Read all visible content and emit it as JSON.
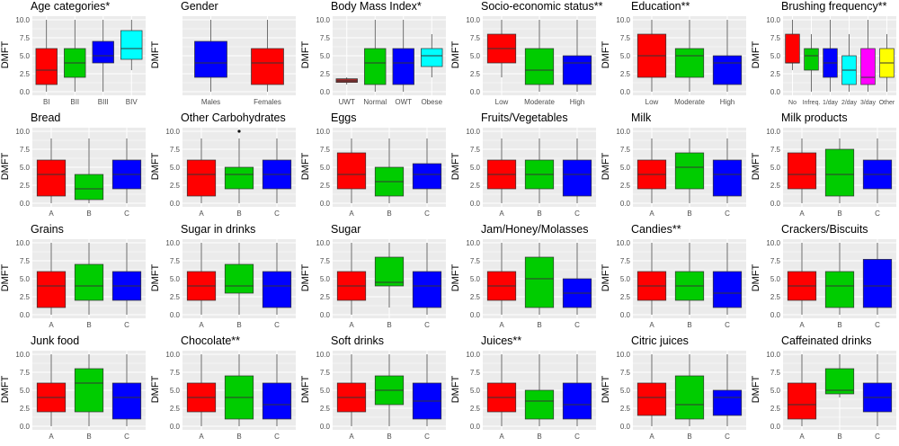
{
  "colors": {
    "panel_bg": "#ebebeb",
    "grid": "#ffffff",
    "red": "#ff0000",
    "green": "#00cc00",
    "blue": "#0000ff",
    "cyan": "#00ffff",
    "magenta": "#ff00ff",
    "yellow": "#ffff00",
    "darkred": "#a52a2a"
  },
  "y_axis_label": "DMFT",
  "chart_data": [
    {
      "type": "box",
      "title": "Age categories*",
      "categories": [
        "BI",
        "BII",
        "BIII",
        "BIV"
      ],
      "ylim": [
        0,
        10
      ],
      "yticks": [
        "0.0",
        "2.5",
        "5.0",
        "7.5",
        "10.0"
      ],
      "boxes": [
        {
          "min": 0,
          "q1": 1,
          "median": 3,
          "q3": 6,
          "max": 10,
          "color": "#ff0000"
        },
        {
          "min": 0,
          "q1": 2,
          "median": 4,
          "q3": 6,
          "max": 10,
          "color": "#00cc00"
        },
        {
          "min": 0,
          "q1": 4,
          "median": 5,
          "q3": 7,
          "max": 10,
          "color": "#0000ff"
        },
        {
          "min": 3,
          "q1": 4.5,
          "median": 6,
          "q3": 8.5,
          "max": 10,
          "color": "#00ffff"
        }
      ]
    },
    {
      "type": "box",
      "title": "Gender",
      "categories": [
        "Males",
        "Females"
      ],
      "ylim": [
        0,
        10
      ],
      "yticks": [
        "",
        "",
        "",
        "",
        ""
      ],
      "boxes": [
        {
          "min": 0,
          "q1": 2,
          "median": 4,
          "q3": 7,
          "max": 10,
          "color": "#0000ff"
        },
        {
          "min": 0,
          "q1": 1,
          "median": 4,
          "q3": 6,
          "max": 10,
          "color": "#ff0000"
        }
      ]
    },
    {
      "type": "box",
      "title": "Body Mass Index*",
      "categories": [
        "UWT",
        "Normal",
        "OWT",
        "Obese"
      ],
      "ylim": [
        0,
        10
      ],
      "yticks": [
        "0.0",
        "2.5",
        "5.0",
        "7.5",
        "10.0"
      ],
      "boxes": [
        {
          "min": 1,
          "q1": 1.3,
          "median": 1.5,
          "q3": 1.8,
          "max": 2,
          "color": "#a52a2a"
        },
        {
          "min": 0,
          "q1": 1,
          "median": 4,
          "q3": 6,
          "max": 10,
          "color": "#00cc00"
        },
        {
          "min": 0,
          "q1": 1,
          "median": 4,
          "q3": 6,
          "max": 10,
          "color": "#0000ff"
        },
        {
          "min": 2,
          "q1": 3.5,
          "median": 5,
          "q3": 6,
          "max": 8,
          "color": "#00ffff"
        }
      ]
    },
    {
      "type": "box",
      "title": "Socio-economic status**",
      "categories": [
        "Low",
        "Moderate",
        "High"
      ],
      "ylim": [
        0,
        10
      ],
      "yticks": [
        "0.0",
        "2.5",
        "5.0",
        "7.5",
        "10.0"
      ],
      "boxes": [
        {
          "min": 2,
          "q1": 4,
          "median": 6,
          "q3": 8,
          "max": 10,
          "color": "#ff0000"
        },
        {
          "min": 0,
          "q1": 1,
          "median": 3,
          "q3": 6,
          "max": 10,
          "color": "#00cc00"
        },
        {
          "min": 0,
          "q1": 1,
          "median": 4,
          "q3": 5,
          "max": 10,
          "color": "#0000ff"
        }
      ]
    },
    {
      "type": "box",
      "title": "Education**",
      "categories": [
        "Low",
        "Moderate",
        "High"
      ],
      "ylim": [
        0,
        10
      ],
      "yticks": [
        "0.0",
        "2.5",
        "5.0",
        "7.5",
        "10.0"
      ],
      "boxes": [
        {
          "min": 0,
          "q1": 2,
          "median": 5,
          "q3": 8,
          "max": 10,
          "color": "#ff0000"
        },
        {
          "min": 0,
          "q1": 2,
          "median": 5,
          "q3": 6,
          "max": 10,
          "color": "#00cc00"
        },
        {
          "min": 0,
          "q1": 1,
          "median": 4,
          "q3": 5,
          "max": 10,
          "color": "#0000ff"
        }
      ]
    },
    {
      "type": "box",
      "title": "Brushing frequency**",
      "categories": [
        "No",
        "Infreq.",
        "1/day",
        "2/day",
        "3/day",
        "Other"
      ],
      "ylim": [
        0,
        10
      ],
      "yticks": [
        "0.0",
        "2.5",
        "5.0",
        "7.5",
        "10.0"
      ],
      "boxes": [
        {
          "min": 3,
          "q1": 4,
          "median": 4,
          "q3": 8,
          "max": 10,
          "color": "#ff0000"
        },
        {
          "min": 0,
          "q1": 3,
          "median": 5,
          "q3": 6,
          "max": 8,
          "color": "#00cc00"
        },
        {
          "min": 0,
          "q1": 2,
          "median": 4,
          "q3": 6,
          "max": 10,
          "color": "#0000ff"
        },
        {
          "min": 0,
          "q1": 1,
          "median": 3,
          "q3": 5,
          "max": 8,
          "color": "#00ffff"
        },
        {
          "min": 0,
          "q1": 1,
          "median": 2,
          "q3": 6,
          "max": 10,
          "color": "#ff00ff"
        },
        {
          "min": 0,
          "q1": 2,
          "median": 4,
          "q3": 6,
          "max": 8,
          "color": "#ffff00"
        }
      ]
    },
    {
      "type": "box",
      "title": "Bread",
      "categories": [
        "A",
        "B",
        "C"
      ],
      "ylim": [
        0,
        10
      ],
      "yticks": [
        "0.0",
        "2.5",
        "5.0",
        "7.5",
        "10.0"
      ],
      "boxes": [
        {
          "min": 0,
          "q1": 1,
          "median": 4,
          "q3": 6,
          "max": 9,
          "color": "#ff0000"
        },
        {
          "min": 0,
          "q1": 0.5,
          "median": 2,
          "q3": 4,
          "max": 9,
          "color": "#00cc00"
        },
        {
          "min": 0,
          "q1": 2,
          "median": 4,
          "q3": 6,
          "max": 9,
          "color": "#0000ff"
        }
      ]
    },
    {
      "type": "box",
      "title": "Other Carbohydrates",
      "categories": [
        "A",
        "B",
        "C"
      ],
      "ylim": [
        0,
        10
      ],
      "yticks": [
        "0.0",
        "2.5",
        "5.0",
        "7.5",
        "10.0"
      ],
      "boxes": [
        {
          "min": 0,
          "q1": 1,
          "median": 4,
          "q3": 6,
          "max": 9,
          "color": "#ff0000"
        },
        {
          "min": 0,
          "q1": 2,
          "median": 4,
          "q3": 5,
          "max": 9,
          "color": "#00cc00",
          "outliers": [
            10
          ]
        },
        {
          "min": 0,
          "q1": 2,
          "median": 4,
          "q3": 6,
          "max": 9,
          "color": "#0000ff"
        }
      ]
    },
    {
      "type": "box",
      "title": "Eggs",
      "categories": [
        "A",
        "B",
        "C"
      ],
      "ylim": [
        0,
        10
      ],
      "yticks": [
        "0.0",
        "2.5",
        "5.0",
        "7.5",
        "10.0"
      ],
      "boxes": [
        {
          "min": 0,
          "q1": 2,
          "median": 4,
          "q3": 7,
          "max": 9,
          "color": "#ff0000"
        },
        {
          "min": 0,
          "q1": 1,
          "median": 3,
          "q3": 5,
          "max": 9,
          "color": "#00cc00"
        },
        {
          "min": 0,
          "q1": 2,
          "median": 4,
          "q3": 5.5,
          "max": 9,
          "color": "#0000ff"
        }
      ]
    },
    {
      "type": "box",
      "title": "Fruits/Vegetables",
      "categories": [
        "A",
        "B",
        "C"
      ],
      "ylim": [
        0,
        10
      ],
      "yticks": [
        "0.0",
        "2.5",
        "5.0",
        "7.5",
        "10.0"
      ],
      "boxes": [
        {
          "min": 0,
          "q1": 2,
          "median": 4,
          "q3": 6,
          "max": 9,
          "color": "#ff0000"
        },
        {
          "min": 0,
          "q1": 2,
          "median": 4,
          "q3": 6,
          "max": 9,
          "color": "#00cc00"
        },
        {
          "min": 0,
          "q1": 1,
          "median": 4,
          "q3": 6,
          "max": 9,
          "color": "#0000ff"
        }
      ]
    },
    {
      "type": "box",
      "title": "Milk",
      "categories": [
        "A",
        "B",
        "C"
      ],
      "ylim": [
        0,
        10
      ],
      "yticks": [
        "0.0",
        "2.5",
        "5.0",
        "7.5",
        "10.0"
      ],
      "boxes": [
        {
          "min": 0,
          "q1": 2,
          "median": 4,
          "q3": 6,
          "max": 9,
          "color": "#ff0000"
        },
        {
          "min": 0,
          "q1": 2,
          "median": 5,
          "q3": 7,
          "max": 9,
          "color": "#00cc00"
        },
        {
          "min": 0,
          "q1": 1,
          "median": 4,
          "q3": 6,
          "max": 9,
          "color": "#0000ff"
        }
      ]
    },
    {
      "type": "box",
      "title": "Milk products",
      "categories": [
        "A",
        "B",
        "C"
      ],
      "ylim": [
        0,
        10
      ],
      "yticks": [
        "0.0",
        "2.5",
        "5.0",
        "7.5",
        "10.0"
      ],
      "boxes": [
        {
          "min": 0,
          "q1": 2,
          "median": 4,
          "q3": 7,
          "max": 9,
          "color": "#ff0000"
        },
        {
          "min": 0,
          "q1": 1,
          "median": 4,
          "q3": 7.5,
          "max": 9,
          "color": "#00cc00"
        },
        {
          "min": 0,
          "q1": 2,
          "median": 4,
          "q3": 6,
          "max": 9,
          "color": "#0000ff"
        }
      ]
    },
    {
      "type": "box",
      "title": "Grains",
      "categories": [
        "A",
        "B",
        "C"
      ],
      "ylim": [
        0,
        10
      ],
      "yticks": [
        "0.0",
        "2.5",
        "5.0",
        "7.5",
        "10.0"
      ],
      "boxes": [
        {
          "min": 0,
          "q1": 1,
          "median": 4,
          "q3": 6,
          "max": 10,
          "color": "#ff0000"
        },
        {
          "min": 0,
          "q1": 2,
          "median": 4,
          "q3": 7,
          "max": 10,
          "color": "#00cc00"
        },
        {
          "min": 0,
          "q1": 2,
          "median": 4,
          "q3": 6,
          "max": 10,
          "color": "#0000ff"
        }
      ]
    },
    {
      "type": "box",
      "title": "Sugar in drinks",
      "categories": [
        "A",
        "B",
        "C"
      ],
      "ylim": [
        0,
        10
      ],
      "yticks": [
        "0.0",
        "2.5",
        "5.0",
        "7.5",
        "10.0"
      ],
      "boxes": [
        {
          "min": 0,
          "q1": 2,
          "median": 4,
          "q3": 6,
          "max": 10,
          "color": "#ff0000"
        },
        {
          "min": 0,
          "q1": 3,
          "median": 4,
          "q3": 7,
          "max": 10,
          "color": "#00cc00"
        },
        {
          "min": 0,
          "q1": 1,
          "median": 4,
          "q3": 6,
          "max": 10,
          "color": "#0000ff"
        }
      ]
    },
    {
      "type": "box",
      "title": "Sugar",
      "categories": [
        "A",
        "B",
        "C"
      ],
      "ylim": [
        0,
        10
      ],
      "yticks": [
        "0.0",
        "2.5",
        "5.0",
        "7.5",
        "10.0"
      ],
      "boxes": [
        {
          "min": 0,
          "q1": 2,
          "median": 4,
          "q3": 6,
          "max": 10,
          "color": "#ff0000"
        },
        {
          "min": 1,
          "q1": 4,
          "median": 4.5,
          "q3": 8,
          "max": 10,
          "color": "#00cc00"
        },
        {
          "min": 0,
          "q1": 1,
          "median": 4,
          "q3": 6,
          "max": 10,
          "color": "#0000ff"
        }
      ]
    },
    {
      "type": "box",
      "title": "Jam/Honey/Molasses",
      "categories": [
        "A",
        "B",
        "C"
      ],
      "ylim": [
        0,
        10
      ],
      "yticks": [
        "0.0",
        "2.5",
        "5.0",
        "7.5",
        "10.0"
      ],
      "boxes": [
        {
          "min": 0,
          "q1": 2,
          "median": 4,
          "q3": 6,
          "max": 10,
          "color": "#ff0000"
        },
        {
          "min": 0,
          "q1": 1,
          "median": 5,
          "q3": 8,
          "max": 10,
          "color": "#00cc00"
        },
        {
          "min": 0,
          "q1": 1,
          "median": 3,
          "q3": 5,
          "max": 10,
          "color": "#0000ff"
        }
      ]
    },
    {
      "type": "box",
      "title": "Candies**",
      "categories": [
        "A",
        "B",
        "C"
      ],
      "ylim": [
        0,
        10
      ],
      "yticks": [
        "0.0",
        "2.5",
        "5.0",
        "7.5",
        "10.0"
      ],
      "boxes": [
        {
          "min": 0,
          "q1": 2,
          "median": 4,
          "q3": 6,
          "max": 10,
          "color": "#ff0000"
        },
        {
          "min": 0,
          "q1": 2,
          "median": 4,
          "q3": 6,
          "max": 10,
          "color": "#00cc00"
        },
        {
          "min": 0,
          "q1": 1,
          "median": 3,
          "q3": 6,
          "max": 10,
          "color": "#0000ff"
        }
      ]
    },
    {
      "type": "box",
      "title": "Crackers/Biscuits",
      "categories": [
        "A",
        "B",
        "C"
      ],
      "ylim": [
        0,
        10
      ],
      "yticks": [
        "0.0",
        "2.5",
        "5.0",
        "7.5",
        "10.0"
      ],
      "boxes": [
        {
          "min": 0,
          "q1": 2,
          "median": 4,
          "q3": 6,
          "max": 10,
          "color": "#ff0000"
        },
        {
          "min": 0,
          "q1": 1,
          "median": 4,
          "q3": 6,
          "max": 10,
          "color": "#00cc00"
        },
        {
          "min": 0,
          "q1": 1,
          "median": 4,
          "q3": 7.7,
          "max": 10,
          "color": "#0000ff"
        }
      ]
    },
    {
      "type": "box",
      "title": "Junk food",
      "categories": [
        "A",
        "B",
        "C"
      ],
      "ylim": [
        0,
        10
      ],
      "yticks": [
        "0.0",
        "2.5",
        "5.0",
        "7.5",
        "10.0"
      ],
      "boxes": [
        {
          "min": 0,
          "q1": 2,
          "median": 4,
          "q3": 6,
          "max": 10,
          "color": "#ff0000"
        },
        {
          "min": 0,
          "q1": 2,
          "median": 6,
          "q3": 8,
          "max": 10,
          "color": "#00cc00"
        },
        {
          "min": 0,
          "q1": 1,
          "median": 4,
          "q3": 6,
          "max": 10,
          "color": "#0000ff"
        }
      ]
    },
    {
      "type": "box",
      "title": "Chocolate**",
      "categories": [
        "A",
        "B",
        "C"
      ],
      "ylim": [
        0,
        10
      ],
      "yticks": [
        "0.0",
        "2.5",
        "5.0",
        "7.5",
        "10.0"
      ],
      "boxes": [
        {
          "min": 0,
          "q1": 2,
          "median": 4,
          "q3": 6,
          "max": 10,
          "color": "#ff0000"
        },
        {
          "min": 0,
          "q1": 1,
          "median": 4,
          "q3": 7,
          "max": 10,
          "color": "#00cc00"
        },
        {
          "min": 0,
          "q1": 1,
          "median": 3,
          "q3": 6,
          "max": 10,
          "color": "#0000ff"
        }
      ]
    },
    {
      "type": "box",
      "title": "Soft drinks",
      "categories": [
        "A",
        "B",
        "C"
      ],
      "ylim": [
        0,
        10
      ],
      "yticks": [
        "0.0",
        "2.5",
        "5.0",
        "7.5",
        "10.0"
      ],
      "boxes": [
        {
          "min": 0,
          "q1": 2,
          "median": 4,
          "q3": 6,
          "max": 10,
          "color": "#ff0000"
        },
        {
          "min": 0,
          "q1": 3,
          "median": 5,
          "q3": 7,
          "max": 10,
          "color": "#00cc00"
        },
        {
          "min": 0,
          "q1": 1,
          "median": 3.5,
          "q3": 6,
          "max": 10,
          "color": "#0000ff"
        }
      ]
    },
    {
      "type": "box",
      "title": "Juices**",
      "categories": [
        "A",
        "B",
        "C"
      ],
      "ylim": [
        0,
        10
      ],
      "yticks": [
        "0.0",
        "2.5",
        "5.0",
        "7.5",
        "10.0"
      ],
      "boxes": [
        {
          "min": 0,
          "q1": 2,
          "median": 4,
          "q3": 6,
          "max": 10,
          "color": "#ff0000"
        },
        {
          "min": 0,
          "q1": 1,
          "median": 3.5,
          "q3": 5,
          "max": 10,
          "color": "#00cc00"
        },
        {
          "min": 0,
          "q1": 1,
          "median": 3,
          "q3": 6,
          "max": 10,
          "color": "#0000ff"
        }
      ]
    },
    {
      "type": "box",
      "title": "Citric juices",
      "categories": [
        "A",
        "B",
        "C"
      ],
      "ylim": [
        0,
        10
      ],
      "yticks": [
        "0.0",
        "2.5",
        "5.0",
        "7.5",
        "10.0"
      ],
      "boxes": [
        {
          "min": 0,
          "q1": 1.5,
          "median": 4,
          "q3": 6,
          "max": 10,
          "color": "#ff0000"
        },
        {
          "min": 0,
          "q1": 1,
          "median": 3,
          "q3": 7,
          "max": 10,
          "color": "#00cc00"
        },
        {
          "min": 0,
          "q1": 1.5,
          "median": 4,
          "q3": 5,
          "max": 10,
          "color": "#0000ff"
        }
      ]
    },
    {
      "type": "box",
      "title": "Caffeinated drinks",
      "categories": [
        "A",
        "B",
        "C"
      ],
      "ylim": [
        0,
        10
      ],
      "yticks": [
        "0.0",
        "2.5",
        "5.0",
        "7.5",
        "10.0"
      ],
      "boxes": [
        {
          "min": 0,
          "q1": 1,
          "median": 3,
          "q3": 6,
          "max": 10,
          "color": "#ff0000"
        },
        {
          "min": 4,
          "q1": 4.5,
          "median": 5,
          "q3": 8,
          "max": 10,
          "color": "#00cc00"
        },
        {
          "min": 0,
          "q1": 2,
          "median": 4,
          "q3": 6,
          "max": 10,
          "color": "#0000ff"
        }
      ]
    }
  ]
}
